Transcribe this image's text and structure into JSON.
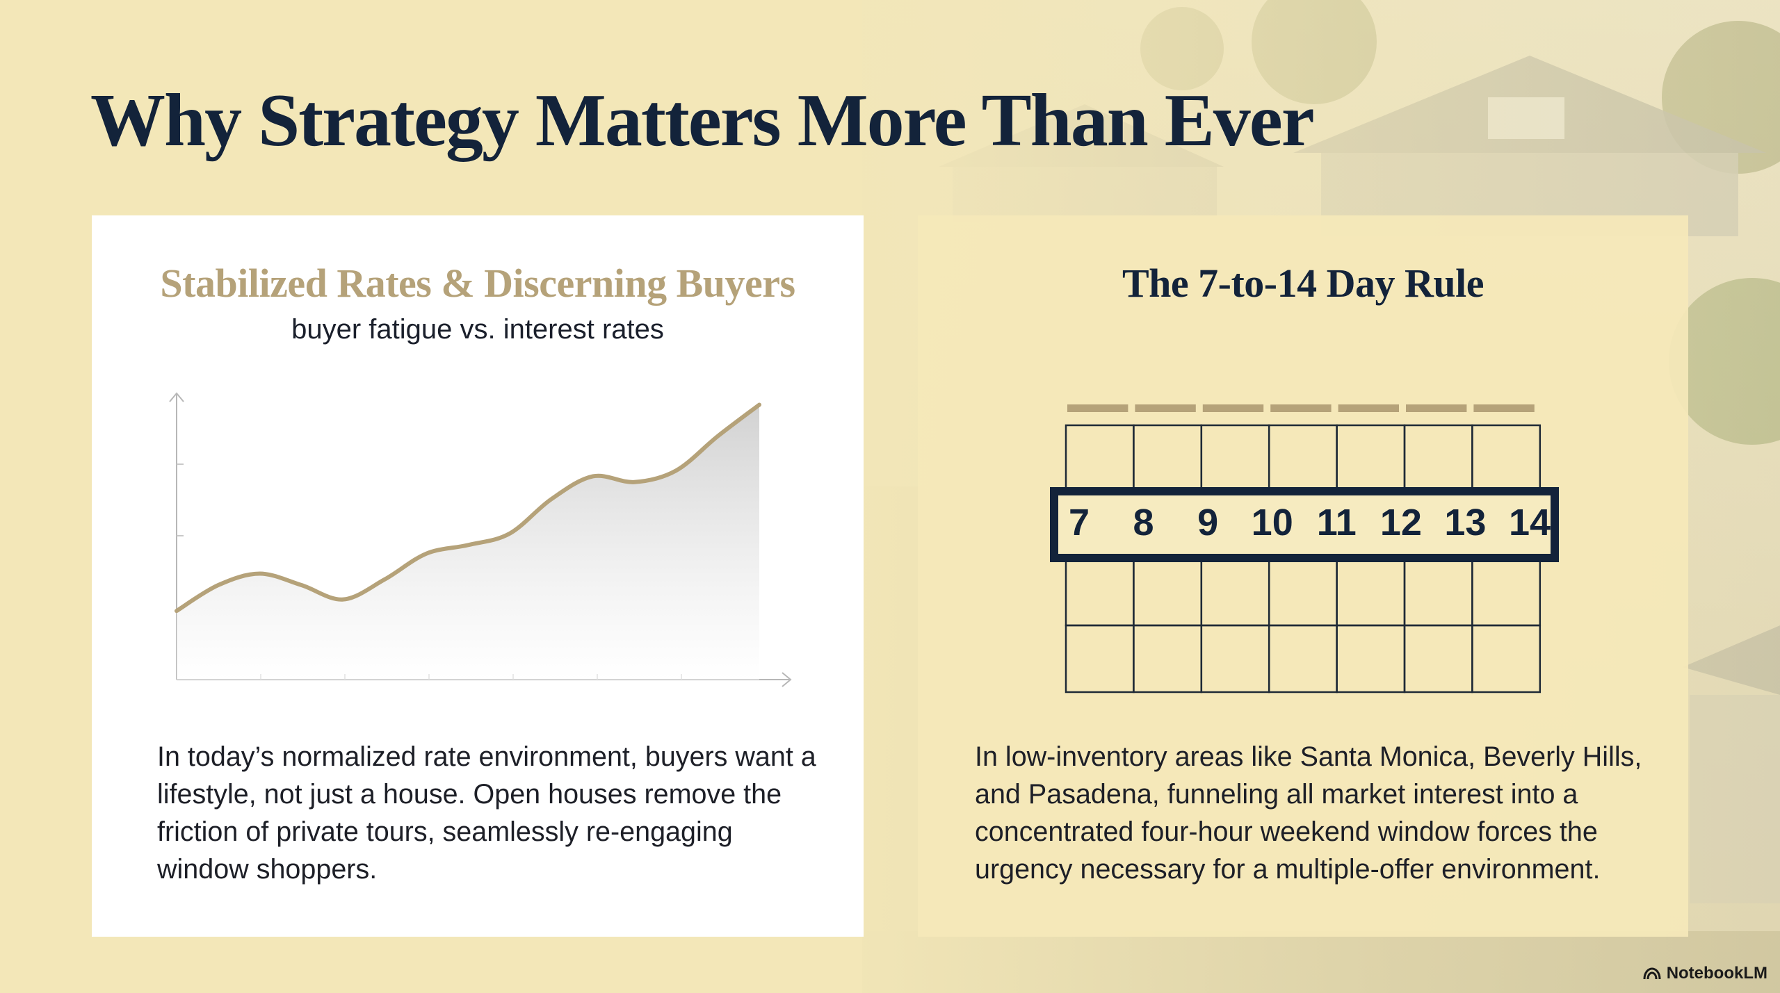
{
  "slide": {
    "title": "Why Strategy Matters More Than Ever",
    "colors": {
      "navy": "#13233a",
      "gold": "#b5a279",
      "background": "#f3e7b8",
      "card_right": "#f5e8b9"
    }
  },
  "left_card": {
    "heading": "Stabilized Rates & Discerning Buyers",
    "subtitle": "buyer fatigue vs. interest rates",
    "body": "In today’s normalized rate environment, buyers want a lifestyle, not just a house. Open houses remove the friction of private tours, seamlessly re-engaging window shoppers."
  },
  "chart_data": {
    "type": "area",
    "title": "buyer fatigue vs. interest rates",
    "x": [
      0,
      0.5,
      1,
      1.5,
      2,
      2.5,
      3,
      3.5,
      4,
      4.5,
      5,
      5.5,
      6,
      6.5,
      7
    ],
    "values": [
      0.24,
      0.33,
      0.37,
      0.33,
      0.28,
      0.35,
      0.44,
      0.47,
      0.51,
      0.63,
      0.71,
      0.69,
      0.73,
      0.85,
      0.96
    ],
    "ylim": [
      0,
      1
    ],
    "xlabel": "",
    "ylabel": "",
    "grid": false,
    "axis_arrows": true,
    "line_color": "#b5a279"
  },
  "right_card": {
    "heading": "The 7-to-14 Day Rule",
    "calendar": {
      "columns": 7,
      "rows": 4,
      "highlight_row": 1,
      "days": [
        "7",
        "8",
        "9",
        "10",
        "11",
        "12",
        "13",
        "14"
      ]
    },
    "body": "In low-inventory areas like Santa Monica, Beverly Hills, and Pasadena, funneling all market interest into a concentrated four-hour weekend window forces the urgency necessary for a multiple-offer environment."
  },
  "watermark": {
    "label": "NotebookLM",
    "icon": "notebooklm-logo-icon"
  }
}
